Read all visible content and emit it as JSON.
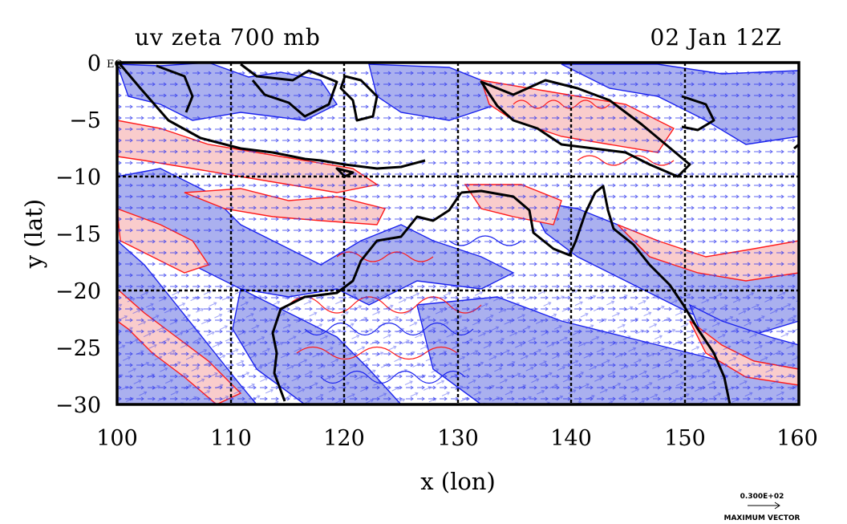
{
  "title_left": "uv zeta 700 mb",
  "title_right": "02 Jan 12Z",
  "eq_label": "EQ",
  "x_axis": {
    "label": "x (lon)",
    "ticks": [
      "100",
      "110",
      "120",
      "130",
      "140",
      "150",
      "160"
    ],
    "range": [
      100,
      160
    ]
  },
  "y_axis": {
    "label": "y (lat)",
    "ticks": [
      "0",
      "−5",
      "−10",
      "−15",
      "−20",
      "−25",
      "−30"
    ],
    "range": [
      -30,
      0
    ]
  },
  "reference_vector": {
    "value": "0.300E+02",
    "label": "MAXIMUM VECTOR"
  },
  "colors": {
    "positive_shade": "#f9cccc",
    "positive_contour": "#ff1a1a",
    "negative_shade": "#aab0ef",
    "negative_contour": "#1a22ee",
    "wind_arrows": "#2a32ee",
    "coastline": "#000000",
    "grid": "#000000"
  },
  "grid_lines": {
    "longitudes": [
      110,
      120,
      130,
      140,
      150
    ],
    "latitudes": [
      -10,
      -20
    ],
    "style": "dashed"
  }
}
